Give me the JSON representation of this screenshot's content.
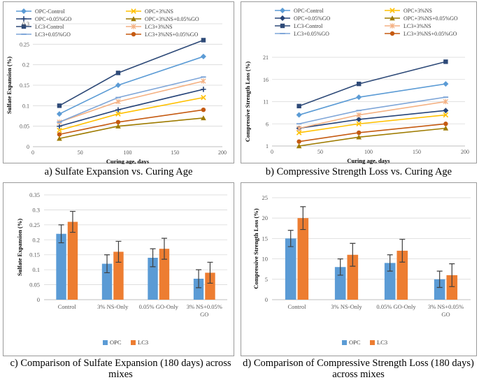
{
  "colors": {
    "opc_control": "#5b9bd5",
    "opc_3ns": "#ffc000",
    "opc_005go": "#264478",
    "opc_3ns_005go": "#9e7b00",
    "lc3_control": "#2e4a78",
    "lc3_3ns": "#f4b183",
    "lc3_005go": "#7fa6d8",
    "lc3_3ns_005go": "#c55a11",
    "bar_opc": "#5b9bd5",
    "bar_lc3": "#ed7d31",
    "grid": "#d9d9d9",
    "axis_text": "#595959"
  },
  "captions": {
    "a": "a) Sulfate Expansion vs. Curing Age",
    "b": "b) Compressive Strength Loss vs. Curing Age",
    "c_line1": "c) Comparison of Sulfate Expansion (180 days) across",
    "c_line2": "mixes",
    "d_line1": "d) Comparison of Compressive Strength Loss (180 days)",
    "d_line2": "across mixes"
  },
  "chart_data": [
    {
      "id": "a",
      "type": "line",
      "title": "",
      "xlabel": "Curing age, days",
      "ylabel": "Sulfate Expansion (%)",
      "xlim": [
        0,
        200
      ],
      "ylim": [
        0,
        0.3
      ],
      "xticks": [
        0,
        50,
        100,
        150,
        200
      ],
      "xtick_labels": [
        "0",
        "50",
        "100",
        "150",
        "200"
      ],
      "yticks": [
        0,
        0.05,
        0.1,
        0.15,
        0.2,
        0.25,
        0.3
      ],
      "ytick_labels": [
        "0",
        "0.05",
        "0.1",
        "0.15",
        "0.2",
        "0.25",
        "0.3"
      ],
      "x": [
        28,
        90,
        180
      ],
      "series": [
        {
          "name": "OPC-Control",
          "values": [
            0.08,
            0.15,
            0.22
          ],
          "marker": "diamond",
          "color_key": "opc_control"
        },
        {
          "name": "OPC+3%NS",
          "values": [
            0.04,
            0.08,
            0.12
          ],
          "marker": "x",
          "color_key": "opc_3ns"
        },
        {
          "name": "OPC+0.05%GO",
          "values": [
            0.05,
            0.09,
            0.14
          ],
          "marker": "plus",
          "color_key": "opc_005go"
        },
        {
          "name": "OPC+3%NS+0.05%GO",
          "values": [
            0.02,
            0.05,
            0.07
          ],
          "marker": "triangle",
          "color_key": "opc_3ns_005go"
        },
        {
          "name": "LC3-Control",
          "values": [
            0.1,
            0.18,
            0.26
          ],
          "marker": "square",
          "color_key": "lc3_control"
        },
        {
          "name": "LC3+3%NS",
          "values": [
            0.06,
            0.11,
            0.16
          ],
          "marker": "asterisk",
          "color_key": "lc3_3ns"
        },
        {
          "name": "LC3+0.05%GO",
          "values": [
            0.06,
            0.12,
            0.17
          ],
          "marker": "dash",
          "color_key": "lc3_005go"
        },
        {
          "name": "LC3+3%NS+0.05%GO",
          "values": [
            0.03,
            0.06,
            0.09
          ],
          "marker": "circle",
          "color_key": "lc3_3ns_005go"
        }
      ]
    },
    {
      "id": "b",
      "type": "line",
      "title": "",
      "xlabel": "Curing age, days",
      "ylabel": "Compressive Strength Loss (%)",
      "xlim": [
        0,
        200
      ],
      "ylim": [
        1,
        21
      ],
      "xticks": [
        0,
        50,
        100,
        150,
        200
      ],
      "xtick_labels": [
        "0",
        "50",
        "100",
        "150",
        "200"
      ],
      "yticks": [
        1,
        6,
        11,
        16,
        21
      ],
      "ytick_labels": [
        "1",
        "6",
        "11",
        "16",
        "21"
      ],
      "x": [
        28,
        90,
        180
      ],
      "series": [
        {
          "name": "OPC-Control",
          "values": [
            8,
            12,
            15
          ],
          "marker": "diamond",
          "color_key": "opc_control"
        },
        {
          "name": "OPC+3%NS",
          "values": [
            4,
            6,
            8
          ],
          "marker": "x",
          "color_key": "opc_3ns"
        },
        {
          "name": "OPC+0.05%GO",
          "values": [
            5,
            7,
            9
          ],
          "marker": "diamond",
          "color_key": "opc_005go"
        },
        {
          "name": "OPC+3%NS+0.05%GO",
          "values": [
            1,
            3,
            5
          ],
          "marker": "triangle",
          "color_key": "opc_3ns_005go"
        },
        {
          "name": "LC3-Control",
          "values": [
            10,
            15,
            20
          ],
          "marker": "square",
          "color_key": "lc3_control"
        },
        {
          "name": "LC3+3%NS",
          "values": [
            5,
            8,
            11
          ],
          "marker": "asterisk",
          "color_key": "lc3_3ns"
        },
        {
          "name": "LC3+0.05%GO",
          "values": [
            6,
            9,
            12
          ],
          "marker": "dash",
          "color_key": "lc3_005go"
        },
        {
          "name": "LC3+3%NS+0.05%GO",
          "values": [
            2,
            4,
            6
          ],
          "marker": "circle",
          "color_key": "lc3_3ns_005go"
        }
      ]
    },
    {
      "id": "c",
      "type": "bar",
      "title": "",
      "xlabel": "",
      "ylabel": "Sulfate Expansion (%)",
      "ylim": [
        0,
        0.35
      ],
      "yticks": [
        0,
        0.05,
        0.1,
        0.15,
        0.2,
        0.25,
        0.3,
        0.35
      ],
      "ytick_labels": [
        "0",
        "0.05",
        "0.1",
        "0.15",
        "0.2",
        "0.25",
        "0.3",
        "0.35"
      ],
      "categories": [
        [
          "Control"
        ],
        [
          "3% NS-Only"
        ],
        [
          "0.05% GO-Only"
        ],
        [
          "3% NS+0.05%",
          "GO"
        ]
      ],
      "series": [
        {
          "name": "OPC",
          "values": [
            0.22,
            0.12,
            0.14,
            0.07
          ],
          "errors": [
            0.03,
            0.03,
            0.03,
            0.03
          ],
          "color_key": "bar_opc"
        },
        {
          "name": "LC3",
          "values": [
            0.26,
            0.16,
            0.17,
            0.09
          ],
          "errors": [
            0.035,
            0.035,
            0.035,
            0.035
          ],
          "color_key": "bar_lc3"
        }
      ],
      "legend": "bottom"
    },
    {
      "id": "d",
      "type": "bar",
      "title": "",
      "xlabel": "",
      "ylabel": "Compressive Strength Loss (%)",
      "ylim": [
        0,
        25
      ],
      "yticks": [
        0,
        5,
        10,
        15,
        20,
        25
      ],
      "ytick_labels": [
        "0",
        "5",
        "10",
        "15",
        "20",
        "25"
      ],
      "categories": [
        [
          "Control"
        ],
        [
          "3% NS-Only"
        ],
        [
          "0.05% GO-Only"
        ],
        [
          "3% NS+0.05%",
          "GO"
        ]
      ],
      "series": [
        {
          "name": "OPC",
          "values": [
            15,
            8,
            9,
            5
          ],
          "errors": [
            2,
            2,
            2,
            2
          ],
          "color_key": "bar_opc"
        },
        {
          "name": "LC3",
          "values": [
            20,
            11,
            12,
            6
          ],
          "errors": [
            2.8,
            2.8,
            2.8,
            2.8
          ],
          "color_key": "bar_lc3"
        }
      ],
      "legend": "bottom"
    }
  ]
}
